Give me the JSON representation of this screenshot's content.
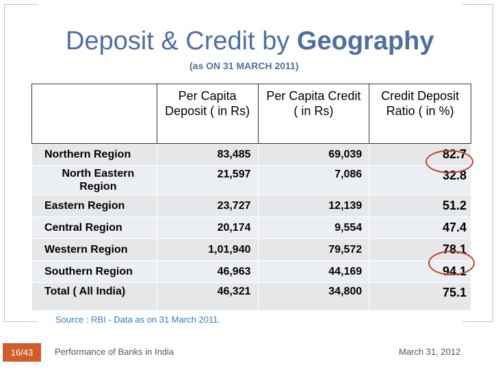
{
  "slide": {
    "title_regular": "Deposit & Credit by ",
    "title_bold": "Geography",
    "subtitle": "(as ON 31 MARCH 2011)",
    "page_number": "16/43",
    "footer_left": "Performance of Banks in India",
    "footer_right": "March 31, 2012",
    "source_note": "Source : RBI - Data as on 31 March 2011.",
    "colors": {
      "accent_orange": "#d15b2b",
      "title_blue": "#4e6fa0",
      "highlight_blue": "#2a6fc9",
      "circle_red": "#b8432c"
    }
  },
  "table": {
    "headers": [
      "",
      "Per Capita Deposit ( in Rs)",
      "Per Capita Credit  ( in Rs)",
      "Credit Deposit Ratio ( in %)"
    ],
    "rows": [
      {
        "region": "Northern Region",
        "deposit": "83,485",
        "credit": "69,039",
        "ratio": "82.7"
      },
      {
        "region": "North Eastern Region",
        "deposit": "21,597",
        "credit": "7,086",
        "ratio": "32.8"
      },
      {
        "region": "Eastern Region",
        "deposit": "23,727",
        "credit": "12,139",
        "ratio": "51.2"
      },
      {
        "region": "Central Region",
        "deposit": "20,174",
        "credit": "9,554",
        "ratio": "47.4"
      },
      {
        "region": "Western Region",
        "deposit": "1,01,940",
        "credit": "79,572",
        "ratio": "78.1"
      },
      {
        "region": "Southern Region",
        "deposit": "46,963",
        "credit": "44,169",
        "ratio": "94.1"
      },
      {
        "region": "Total ( All India)",
        "deposit": "46,321",
        "credit": "34,800",
        "ratio": "75.1"
      }
    ]
  }
}
